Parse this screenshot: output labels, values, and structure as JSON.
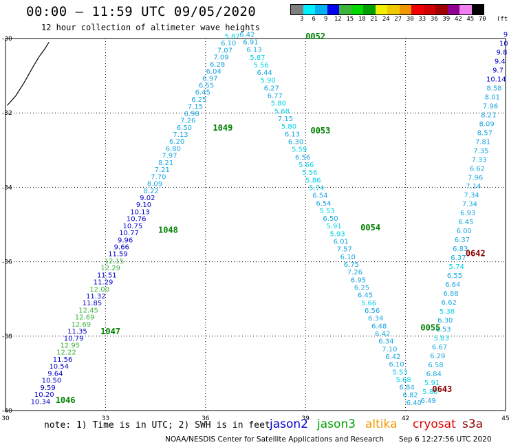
{
  "title": "00:00 – 11:59 UTC 09/05/2020",
  "subtitle": "12 hour collection of altimeter wave heights",
  "legend": {
    "colors": [
      "#7f7f7f",
      "#00f0ff",
      "#00b0f0",
      "#0000f0",
      "#3cb43c",
      "#00d800",
      "#00a000",
      "#f0f000",
      "#f0c800",
      "#f09600",
      "#f00000",
      "#d00000",
      "#a00000",
      "#900090",
      "#f080f0",
      "#000000"
    ],
    "labels": [
      "3",
      "6",
      "9",
      "12",
      "15",
      "18",
      "21",
      "24",
      "27",
      "30",
      "33",
      "36",
      "39",
      "42",
      "45",
      "70"
    ],
    "unit": "(ft)"
  },
  "axes": {
    "x_ticks": [
      "30",
      "33",
      "36",
      "39",
      "42",
      "45"
    ],
    "y_ticks": [
      "-30",
      "-32",
      "-34",
      "-36",
      "-38",
      "-40"
    ]
  },
  "note": "note: 1) Time is in UTC; 2) SWH is in feet",
  "satellites": [
    {
      "name": "jason2",
      "color": "#0000d0"
    },
    {
      "name": "jason3",
      "color": "#00a000"
    },
    {
      "name": "altika",
      "color": "#f09600"
    },
    {
      "name": "cryosat",
      "color": "#e00000"
    },
    {
      "name": "s3a",
      "color": "#900000"
    }
  ],
  "credit": "NOAA/NESDIS Center for Satellite Applications and Research",
  "generated": "Sep  6 12:27:56 UTC 2020",
  "time_labels": [
    {
      "text": "0052",
      "color": "#008000",
      "lon": 39.0,
      "lat": -30.02
    },
    {
      "text": "1049",
      "color": "#008000",
      "lon": 36.22,
      "lat": -32.48
    },
    {
      "text": "0053",
      "color": "#008000",
      "lon": 39.15,
      "lat": -32.55
    },
    {
      "text": "1048",
      "color": "#008000",
      "lon": 34.58,
      "lat": -35.22
    },
    {
      "text": "0054",
      "color": "#008000",
      "lon": 40.65,
      "lat": -35.16
    },
    {
      "text": "0642",
      "color": "#8b0000",
      "lon": 43.8,
      "lat": -35.85
    },
    {
      "text": "1047",
      "color": "#008000",
      "lon": 32.85,
      "lat": -37.95
    },
    {
      "text": "0055",
      "color": "#008000",
      "lon": 42.45,
      "lat": -37.85
    },
    {
      "text": "0643",
      "color": "#8b0000",
      "lon": 42.8,
      "lat": -39.5
    },
    {
      "text": "1046",
      "color": "#008000",
      "lon": 31.5,
      "lat": -39.8
    }
  ],
  "tracks": [
    {
      "id": "jason3-descending-west",
      "start": {
        "lon": 31.05,
        "lat": -39.82
      },
      "end": {
        "lon": 36.8,
        "lat": -30.0
      },
      "values": [
        "10.34",
        "10.20",
        "9.59",
        "10.50",
        "9.64",
        "10.54",
        "11.56",
        "12.22",
        "12.95",
        "10.79",
        "11.35",
        "12.69",
        "12.69",
        "12.45",
        "11.85",
        "11.32",
        "12.00",
        "11.29",
        "11.51",
        "12.29",
        "12.15",
        "11.59",
        "9.66",
        "9.96",
        "10.77",
        "10.75",
        "10.76",
        "10.13",
        "9.10",
        "9.02",
        "8.22",
        "8.09",
        "7.70",
        "7.21",
        "8.21",
        "7.97",
        "6.80",
        "6.20",
        "7.13",
        "6.50",
        "7.26",
        "6.98",
        "7.15",
        "6.25",
        "6.45",
        "6.55",
        "6.97",
        "6.04",
        "6.28",
        "7.09",
        "7.07",
        "6.10",
        "5.87"
      ]
    },
    {
      "id": "jason3-ascending-east",
      "start": {
        "lon": 37.25,
        "lat": -29.95
      },
      "end": {
        "lon": 42.25,
        "lat": -39.85
      },
      "values": [
        "6.42",
        "6.91",
        "6.13",
        "5.87",
        "5.56",
        "6.44",
        "5.90",
        "6.27",
        "6.77",
        "5.80",
        "5.68",
        "7.15",
        "5.80",
        "6.13",
        "6.30",
        "5.59",
        "6.56",
        "5.66",
        "5.56",
        "5.86",
        "5.74",
        "6.54",
        "6.54",
        "5.53",
        "6.50",
        "5.91",
        "5.93",
        "6.01",
        "7.57",
        "6.10",
        "6.75",
        "7.26",
        "6.95",
        "6.25",
        "6.45",
        "5.66",
        "6.56",
        "6.34",
        "6.48",
        "6.42",
        "6.34",
        "7.10",
        "6.42",
        "6.10",
        "5.53",
        "5.68",
        "6.84",
        "6.82",
        "6.40"
      ]
    },
    {
      "id": "s3a-north",
      "start": {
        "lon": 42.68,
        "lat": -39.8
      },
      "end": {
        "lon": 45.0,
        "lat": -29.95
      },
      "values": [
        "6.49",
        "5.80",
        "5.91",
        "6.84",
        "6.58",
        "6.29",
        "6.67",
        "5.83",
        "6.53",
        "6.30",
        "5.38",
        "6.62",
        "6.88",
        "6.64",
        "6.55",
        "5.74",
        "6.37",
        "6.83",
        "6.37",
        "6.00",
        "6.45",
        "6.93",
        "7.34",
        "7.34",
        "7.14",
        "7.96",
        "6.62",
        "7.33",
        "7.35",
        "7.81",
        "8.57",
        "8.09",
        "8.21",
        "7.96",
        "8.01",
        "8.58",
        "10.14",
        "9.7",
        "9.4",
        "9.8",
        "10",
        "9"
      ]
    }
  ],
  "coastline": [
    {
      "lon": 30.05,
      "lat": -31.8
    },
    {
      "lon": 30.3,
      "lat": -31.55
    },
    {
      "lon": 30.55,
      "lat": -31.2
    },
    {
      "lon": 30.8,
      "lat": -30.8
    },
    {
      "lon": 31.0,
      "lat": -30.5
    },
    {
      "lon": 31.2,
      "lat": -30.25
    },
    {
      "lon": 31.3,
      "lat": -30.1
    }
  ]
}
